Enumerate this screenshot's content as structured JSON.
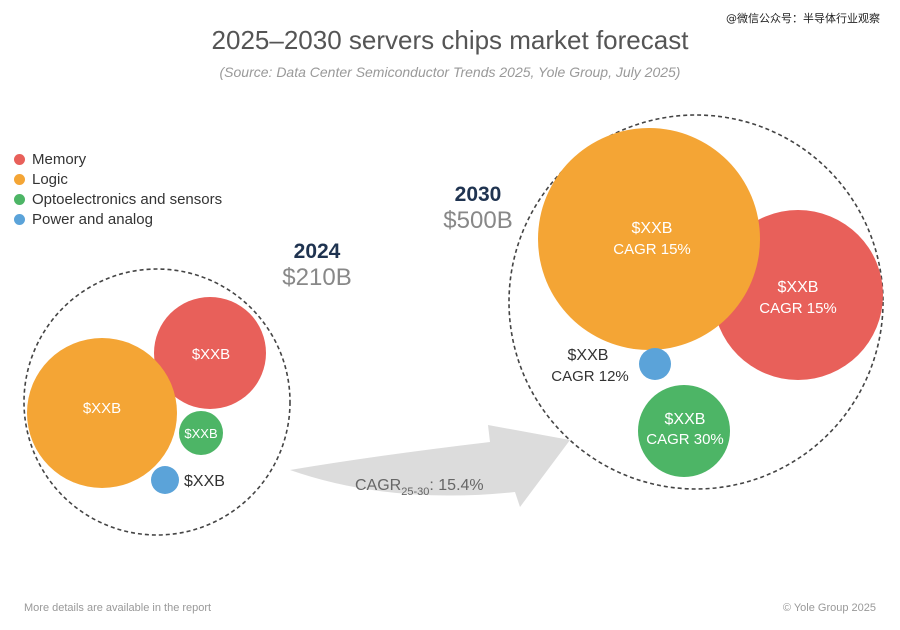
{
  "watermark": "@微信公众号：半导体行业观察",
  "title": "2025–2030 servers chips market forecast",
  "subtitle": "(Source: Data Center Semiconductor Trends 2025, Yole Group, July 2025)",
  "legend": [
    {
      "label": "Memory",
      "color": "#e8605a"
    },
    {
      "label": "Logic",
      "color": "#f4a535"
    },
    {
      "label": "Optoelectronics and sensors",
      "color": "#4db566"
    },
    {
      "label": "Power and analog",
      "color": "#5ba3d9"
    }
  ],
  "year_2024": {
    "year": "2024",
    "total": "$210B"
  },
  "year_2030": {
    "year": "2030",
    "total": "$500B"
  },
  "bubbles_2024": {
    "memory": "$XXB",
    "logic": "$XXB",
    "opto": "$XXB",
    "power": "$XXB"
  },
  "bubbles_2030": {
    "logic_value": "$XXB",
    "logic_cagr": "CAGR 15%",
    "memory_value": "$XXB",
    "memory_cagr": "CAGR 15%",
    "power_value": "$XXB",
    "power_cagr": "CAGR 12%",
    "opto_value": "$XXB",
    "opto_cagr": "CAGR 30%"
  },
  "cagr": {
    "prefix": "CAGR",
    "sub": "25-30",
    "value": ": 15.4%"
  },
  "footer": {
    "left": "More details are available in the report",
    "right": "© Yole Group 2025"
  }
}
